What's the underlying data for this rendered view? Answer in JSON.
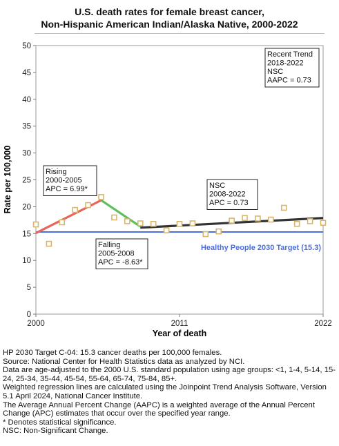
{
  "title_line1": "U.S. death rates for female breast cancer,",
  "title_line2": "Non-Hispanic American Indian/Alaska Native,  2000-2022",
  "chart_data": {
    "type": "scatter",
    "xlabel": "Year of death",
    "ylabel": "Rate per 100,000",
    "xlim": [
      2000,
      2022
    ],
    "ylim": [
      0,
      50
    ],
    "x_ticks": [
      "2000",
      "2011",
      "2022"
    ],
    "y_ticks": [
      "0",
      "5",
      "10",
      "15",
      "20",
      "25",
      "30",
      "35",
      "40",
      "45",
      "50"
    ],
    "grid": false,
    "observed": {
      "color": "#d8b56a",
      "points": [
        [
          2000,
          16.7
        ],
        [
          2001,
          13.1
        ],
        [
          2002,
          17.1
        ],
        [
          2003,
          19.4
        ],
        [
          2004,
          20.3
        ],
        [
          2005,
          21.8
        ],
        [
          2006,
          18.0
        ],
        [
          2007,
          17.3
        ],
        [
          2008,
          16.9
        ],
        [
          2009,
          16.8
        ],
        [
          2010,
          15.6
        ],
        [
          2011,
          16.8
        ],
        [
          2012,
          16.9
        ],
        [
          2013,
          14.9
        ],
        [
          2014,
          15.4
        ],
        [
          2015,
          17.4
        ],
        [
          2016,
          17.9
        ],
        [
          2017,
          17.8
        ],
        [
          2018,
          17.6
        ],
        [
          2019,
          19.8
        ],
        [
          2020,
          16.8
        ],
        [
          2021,
          17.3
        ],
        [
          2022,
          17.0
        ]
      ]
    },
    "trend_segments": [
      {
        "x": [
          2000,
          2005
        ],
        "y": [
          15.1,
          21.2
        ],
        "color": "#e8635a"
      },
      {
        "x": [
          2005,
          2008
        ],
        "y": [
          21.2,
          16.3
        ],
        "color": "#5cbf5c"
      },
      {
        "x": [
          2008,
          2022
        ],
        "y": [
          16.1,
          17.9
        ],
        "color": "#333333"
      }
    ],
    "target": {
      "value": 15.3,
      "label": "Healthy People 2030 Target (15.3)",
      "color": "#4a6fe3"
    },
    "annotations": [
      {
        "lines": [
          "Rising",
          "2000-2005",
          "APC =  6.99*"
        ],
        "boxed": true
      },
      {
        "lines": [
          "Falling",
          "2005-2008",
          "APC = -8.63*"
        ],
        "boxed": true
      },
      {
        "lines": [
          "NSC",
          "2008-2022",
          "APC =  0.73"
        ],
        "boxed": true
      },
      {
        "lines": [
          "Recent Trend",
          "2018-2022",
          "NSC",
          "AAPC =  0.73"
        ],
        "boxed": true
      }
    ]
  },
  "footnotes": [
    "HP 2030 Target C-04: 15.3 cancer deaths per 100,000 females.",
    "Source: National Center for Health Statistics data as analyzed by NCI.",
    "Data are age-adjusted to the 2000 U.S. standard population using age groups: <1, 1-4, 5-14, 15-24, 25-34, 35-44, 45-54, 55-64, 65-74, 75-84, 85+.",
    "Weighted regression lines are calculated using the Joinpoint Trend Analysis Software, Version 5.1 April 2024, National Cancer Institute.",
    "The Average Annual Percent Change (AAPC) is a weighted average of the Annual Percent Change (APC) estimates that occur over the specified year range.",
    "* Denotes statistical significance.",
    "NSC: Non-Significant Change."
  ]
}
